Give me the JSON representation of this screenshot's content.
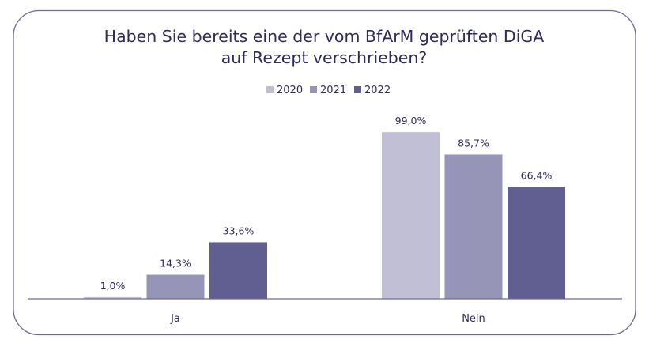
{
  "chart_data": {
    "type": "bar",
    "title_lines": [
      "Haben Sie bereits eine der vom BfArM geprüften DiGA",
      "auf Rezept verschrieben?"
    ],
    "categories": [
      "Ja",
      "Nein"
    ],
    "series": [
      {
        "name": "2020",
        "values": [
          1.0,
          99.0
        ],
        "labels": [
          "1,0%",
          "99,0%"
        ],
        "color": "#c1bfd6"
      },
      {
        "name": "2021",
        "values": [
          14.3,
          85.7
        ],
        "labels": [
          "14,3%",
          "85,7%"
        ],
        "color": "#9695b8"
      },
      {
        "name": "2022",
        "values": [
          33.6,
          66.4
        ],
        "labels": [
          "33,6%",
          "66,4%"
        ],
        "color": "#615e92"
      }
    ],
    "ylim": [
      0,
      100
    ],
    "grid": false,
    "legend_position": "top-center",
    "xlabel": "",
    "ylabel": ""
  }
}
